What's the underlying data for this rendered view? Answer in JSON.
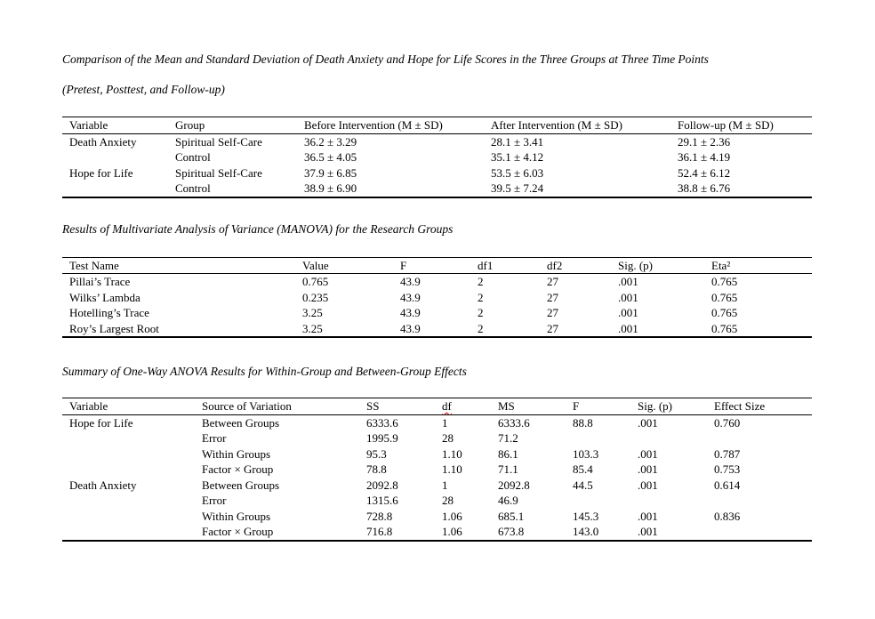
{
  "page": {
    "background_color": "#ffffff",
    "text_color": "#000000",
    "spellcheck_underline_color": "#e00000"
  },
  "sections": [
    {
      "caption_lines": [
        "Comparison of the Mean and Standard Deviation of Death Anxiety and Hope for Life Scores in the Three Groups at Three Time Points",
        "(Pretest, Posttest, and Follow-up)"
      ],
      "table": {
        "columns": [
          "Variable",
          "Group",
          "Before Intervention (M ± SD)",
          "After Intervention (M ± SD)",
          "Follow-up (M ± SD)"
        ],
        "rows": [
          [
            "Death Anxiety",
            "Spiritual Self-Care",
            "36.2 ± 3.29",
            "28.1 ± 3.41",
            "29.1 ± 2.36"
          ],
          [
            "",
            "Control",
            "36.5 ± 4.05",
            "35.1 ± 4.12",
            "36.1 ± 4.19"
          ],
          [
            "Hope for Life",
            "Spiritual Self-Care",
            "37.9 ± 6.85",
            "53.5 ± 6.03",
            "52.4 ± 6.12"
          ],
          [
            "",
            "Control",
            "38.9 ± 6.90",
            "39.5 ± 7.24",
            "38.8 ± 6.76"
          ]
        ]
      }
    },
    {
      "caption_lines": [
        "Results of Multivariate Analysis of Variance (MANOVA) for the Research Groups"
      ],
      "table": {
        "columns": [
          "Test Name",
          "Value",
          "F",
          "df1",
          "df2",
          "Sig. (p)",
          "Eta²"
        ],
        "rows": [
          [
            "Pillai’s Trace",
            "0.765",
            "43.9",
            "2",
            "27",
            ".001",
            "0.765"
          ],
          [
            "Wilks’ Lambda",
            "0.235",
            "43.9",
            "2",
            "27",
            ".001",
            "0.765"
          ],
          [
            "Hotelling’s Trace",
            "3.25",
            "43.9",
            "2",
            "27",
            ".001",
            "0.765"
          ],
          [
            "Roy’s Largest Root",
            "3.25",
            "43.9",
            "2",
            "27",
            ".001",
            "0.765"
          ]
        ]
      }
    },
    {
      "caption_lines": [
        "Summary of One-Way ANOVA Results for Within-Group and Between-Group Effects"
      ],
      "table": {
        "columns": [
          "Variable",
          "Source of Variation",
          "SS",
          "df",
          "MS",
          "F",
          "Sig. (p)",
          "Effect Size"
        ],
        "spell_flagged_column": "df",
        "rows": [
          [
            "Hope for Life",
            "Between Groups",
            "6333.6",
            "1",
            "6333.6",
            "88.8",
            ".001",
            "0.760"
          ],
          [
            "",
            "Error",
            "1995.9",
            "28",
            "71.2",
            "",
            "",
            ""
          ],
          [
            "",
            "Within Groups",
            "95.3",
            "1.10",
            "86.1",
            "103.3",
            ".001",
            "0.787"
          ],
          [
            "",
            "Factor × Group",
            "78.8",
            "1.10",
            "71.1",
            "85.4",
            ".001",
            "0.753"
          ],
          [
            "Death Anxiety",
            "Between Groups",
            "2092.8",
            "1",
            "2092.8",
            "44.5",
            ".001",
            "0.614"
          ],
          [
            "",
            "Error",
            "1315.6",
            "28",
            "46.9",
            "",
            "",
            ""
          ],
          [
            "",
            "Within Groups",
            "728.8",
            "1.06",
            "685.1",
            "145.3",
            ".001",
            "0.836"
          ],
          [
            "",
            "Factor × Group",
            "716.8",
            "1.06",
            "673.8",
            "143.0",
            ".001",
            ""
          ]
        ]
      }
    }
  ]
}
